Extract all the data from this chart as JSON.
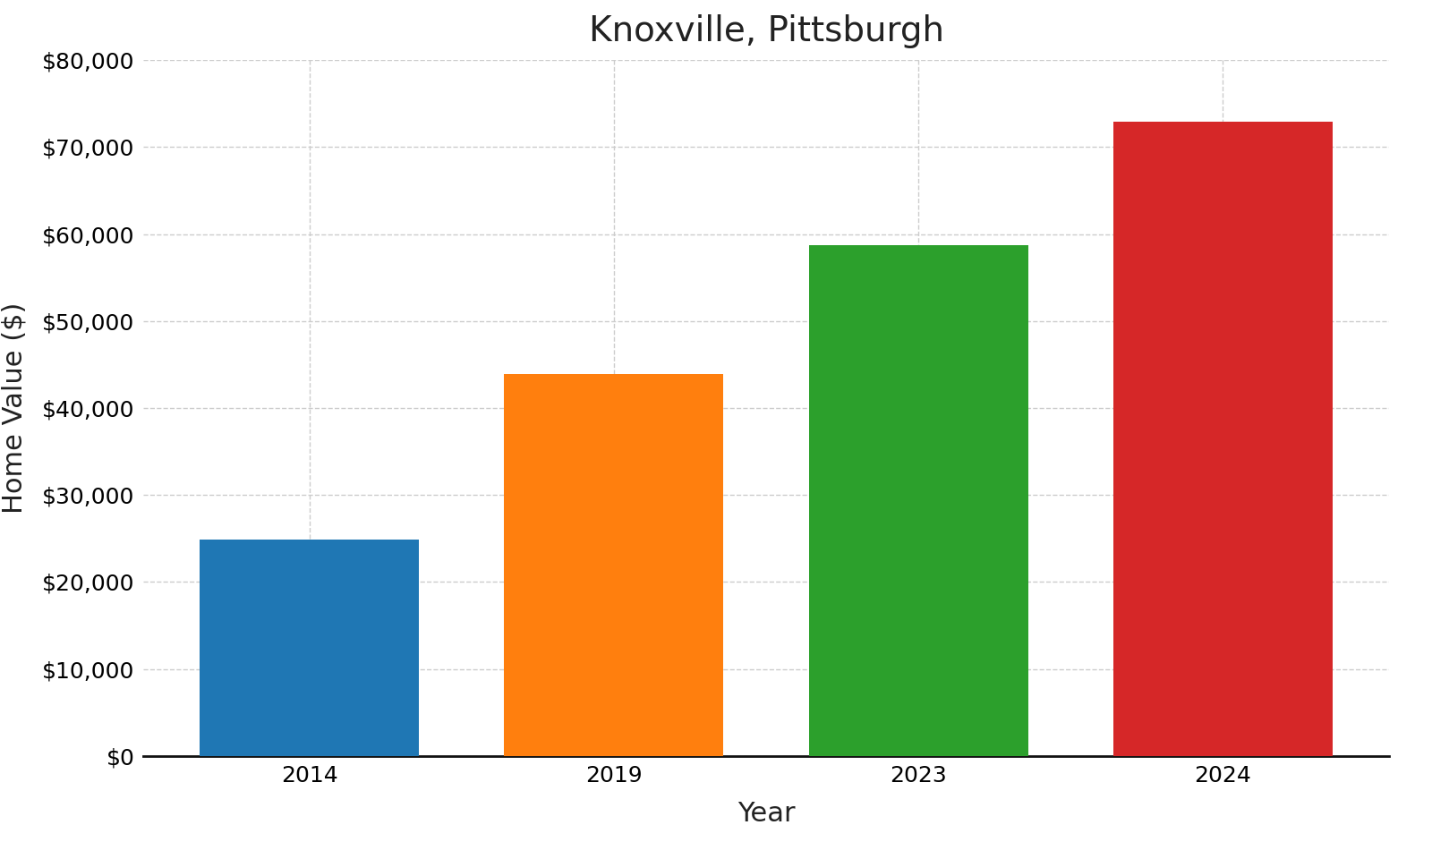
{
  "title": "Knoxville, Pittsburgh",
  "xlabel": "Year",
  "ylabel": "Home Value ($)",
  "categories": [
    "2014",
    "2019",
    "2023",
    "2024"
  ],
  "values": [
    24900,
    43900,
    58700,
    72900
  ],
  "bar_colors": [
    "#1f77b4",
    "#ff7f0e",
    "#2ca02c",
    "#d62728"
  ],
  "ylim": [
    0,
    80000
  ],
  "yticks": [
    0,
    10000,
    20000,
    30000,
    40000,
    50000,
    60000,
    70000,
    80000
  ],
  "ytick_labels": [
    "$0",
    "$10,000",
    "$20,000",
    "$30,000",
    "$40,000",
    "$50,000",
    "$60,000",
    "$70,000",
    "$80,000"
  ],
  "background_color": "#ffffff",
  "grid_color": "#cccccc",
  "title_fontsize": 28,
  "label_fontsize": 22,
  "tick_fontsize": 18,
  "bar_width": 0.72
}
